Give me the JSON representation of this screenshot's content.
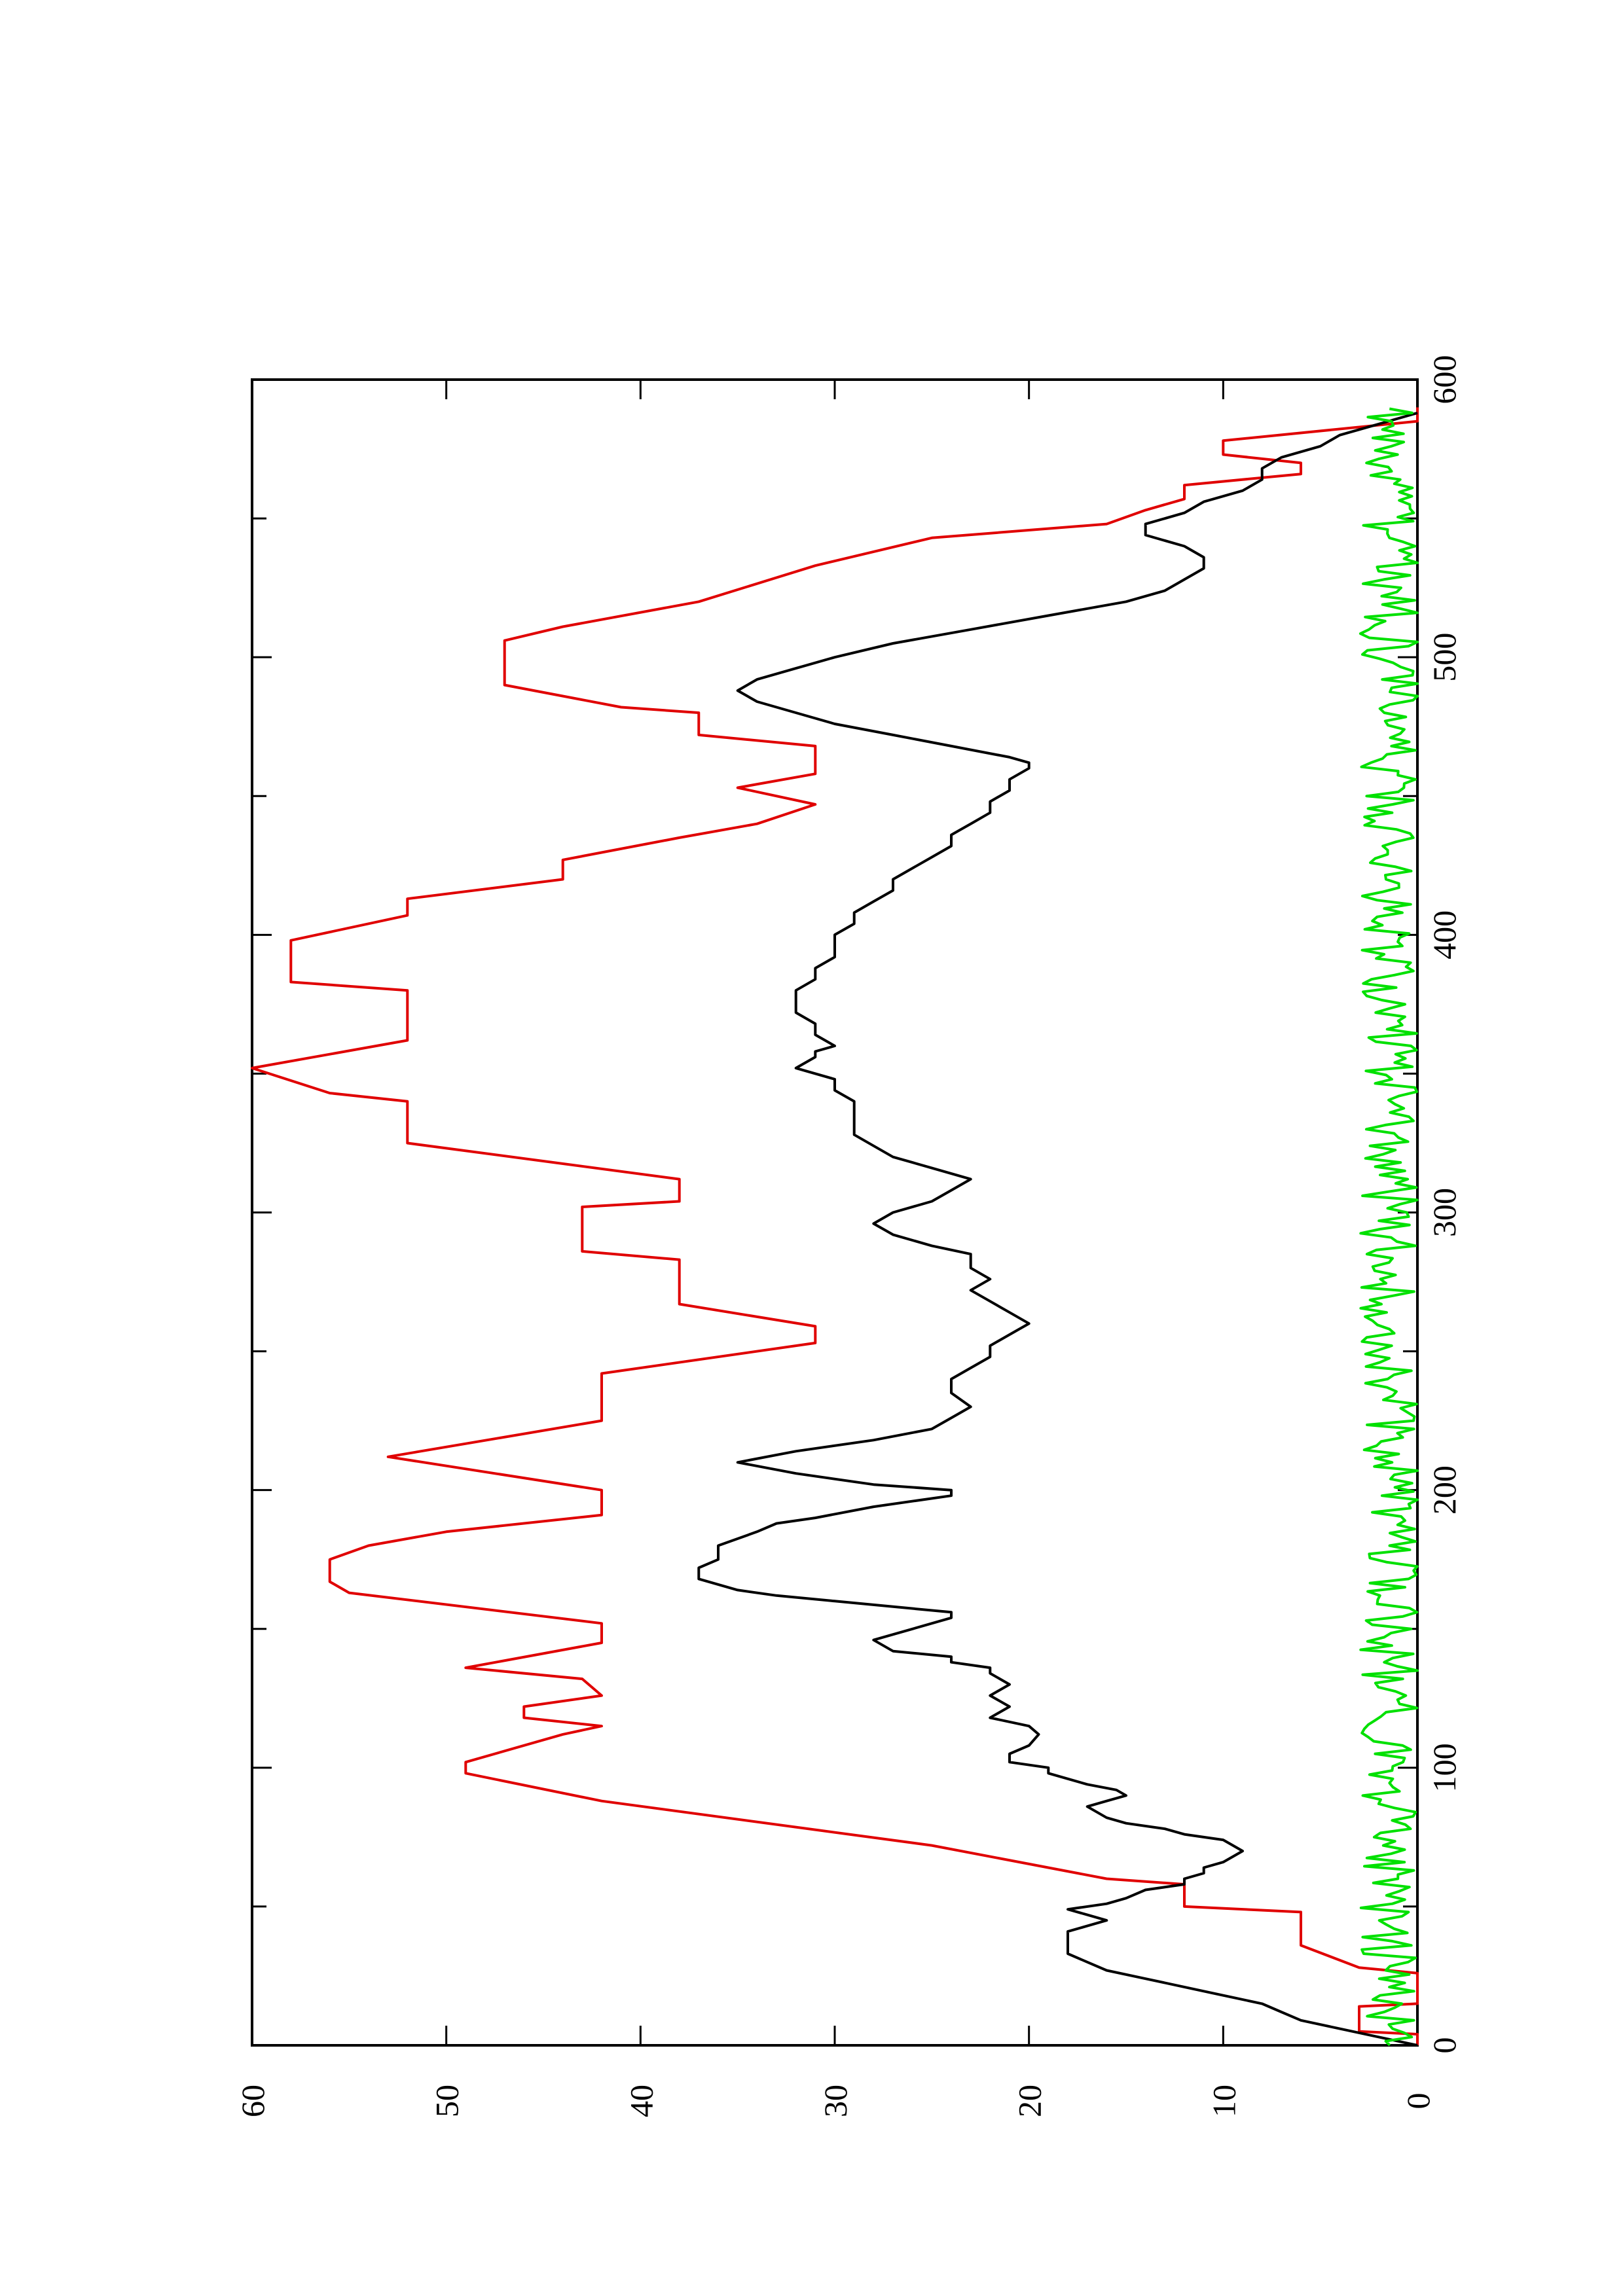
{
  "chart_data": {
    "type": "line",
    "orientation": "rotated-90-ccw",
    "title": "",
    "xlabel": "",
    "ylabel": "",
    "xlim": [
      0,
      600
    ],
    "ylim": [
      0,
      60
    ],
    "x_ticks_major": [
      0,
      100,
      200,
      300,
      400,
      500,
      600
    ],
    "x_ticks_minor": [
      50,
      150,
      250,
      350,
      450,
      550
    ],
    "y_ticks_major": [
      0,
      10,
      20,
      30,
      40,
      50,
      60
    ],
    "x_tick_labels": [
      "0",
      "100",
      "200",
      "300",
      "400",
      "500",
      "600"
    ],
    "y_tick_labels": [
      "0",
      "10",
      "20",
      "30",
      "40",
      "50",
      "60"
    ],
    "grid": false,
    "colors": {
      "red": "#e00000",
      "black": "#000000",
      "green": "#00e000"
    },
    "series": [
      {
        "color": "red",
        "step": true,
        "points": [
          [
            0,
            0
          ],
          [
            4,
            0
          ],
          [
            5,
            3
          ],
          [
            14,
            3
          ],
          [
            15,
            0
          ],
          [
            18,
            0
          ],
          [
            26,
            0
          ],
          [
            28,
            3
          ],
          [
            36,
            6
          ],
          [
            48,
            6
          ],
          [
            50,
            12
          ],
          [
            58,
            12
          ],
          [
            60,
            16
          ],
          [
            72,
            25
          ],
          [
            88,
            42
          ],
          [
            98,
            49
          ],
          [
            102,
            49
          ],
          [
            112,
            44
          ],
          [
            115,
            42
          ],
          [
            118,
            46
          ],
          [
            122,
            46
          ],
          [
            126,
            42
          ],
          [
            132,
            43
          ],
          [
            136,
            49
          ],
          [
            145,
            42
          ],
          [
            152,
            42
          ],
          [
            163,
            55
          ],
          [
            167,
            56
          ],
          [
            175,
            56
          ],
          [
            180,
            54
          ],
          [
            185,
            50
          ],
          [
            191,
            42
          ],
          [
            200,
            42
          ],
          [
            212,
            53
          ],
          [
            225,
            42
          ],
          [
            242,
            42
          ],
          [
            253,
            31
          ],
          [
            259,
            31
          ],
          [
            267,
            38
          ],
          [
            283,
            38
          ],
          [
            286,
            43
          ],
          [
            302,
            43
          ],
          [
            304,
            38
          ],
          [
            312,
            38
          ],
          [
            325,
            52
          ],
          [
            340,
            52
          ],
          [
            343,
            56
          ],
          [
            352,
            60
          ],
          [
            357,
            56
          ],
          [
            362,
            52
          ],
          [
            380,
            52
          ],
          [
            383,
            58
          ],
          [
            398,
            58
          ],
          [
            407,
            52
          ],
          [
            413,
            52
          ],
          [
            420,
            44
          ],
          [
            427,
            44
          ],
          [
            435,
            38
          ],
          [
            440,
            34
          ],
          [
            447,
            31
          ],
          [
            453,
            35
          ],
          [
            458,
            31
          ],
          [
            468,
            31
          ],
          [
            472,
            37
          ],
          [
            480,
            37
          ],
          [
            482,
            41
          ],
          [
            490,
            47
          ],
          [
            506,
            47
          ],
          [
            511,
            44
          ],
          [
            520,
            37
          ],
          [
            533,
            31
          ],
          [
            543,
            25
          ],
          [
            548,
            16
          ],
          [
            553,
            14
          ],
          [
            557,
            12
          ],
          [
            562,
            12
          ],
          [
            566,
            6
          ],
          [
            570,
            6
          ],
          [
            573,
            10
          ],
          [
            578,
            10
          ],
          [
            585,
            0
          ],
          [
            590,
            0
          ]
        ]
      },
      {
        "color": "black",
        "points": [
          [
            0,
            0
          ],
          [
            3,
            2
          ],
          [
            6,
            4
          ],
          [
            9,
            6
          ],
          [
            12,
            7
          ],
          [
            15,
            8
          ],
          [
            18,
            10
          ],
          [
            21,
            12
          ],
          [
            24,
            14
          ],
          [
            27,
            16
          ],
          [
            30,
            17
          ],
          [
            33,
            18
          ],
          [
            36,
            18
          ],
          [
            39,
            18
          ],
          [
            41,
            18
          ],
          [
            43,
            17
          ],
          [
            45,
            16
          ],
          [
            47,
            17
          ],
          [
            49,
            18
          ],
          [
            51,
            16
          ],
          [
            53,
            15
          ],
          [
            56,
            14
          ],
          [
            58,
            12
          ],
          [
            60,
            12
          ],
          [
            62,
            11
          ],
          [
            64,
            11
          ],
          [
            66,
            10
          ],
          [
            68,
            9.5
          ],
          [
            70,
            9
          ],
          [
            72,
            9.5
          ],
          [
            74,
            10
          ],
          [
            76,
            12
          ],
          [
            78,
            13
          ],
          [
            80,
            15
          ],
          [
            82,
            16
          ],
          [
            84,
            16.5
          ],
          [
            86,
            17
          ],
          [
            88,
            16
          ],
          [
            90,
            15
          ],
          [
            92,
            15.5
          ],
          [
            94,
            17
          ],
          [
            96,
            18
          ],
          [
            98,
            19
          ],
          [
            100,
            19
          ],
          [
            102,
            21
          ],
          [
            105,
            21
          ],
          [
            108,
            20
          ],
          [
            112,
            19.5
          ],
          [
            115,
            20
          ],
          [
            118,
            22
          ],
          [
            122,
            21
          ],
          [
            126,
            22
          ],
          [
            130,
            21
          ],
          [
            134,
            22
          ],
          [
            136,
            22
          ],
          [
            138,
            24
          ],
          [
            140,
            24
          ],
          [
            142,
            27
          ],
          [
            146,
            28
          ],
          [
            150,
            26
          ],
          [
            154,
            24
          ],
          [
            156,
            24
          ],
          [
            158,
            27
          ],
          [
            160,
            30
          ],
          [
            162,
            33
          ],
          [
            164,
            35
          ],
          [
            166,
            36
          ],
          [
            168,
            37
          ],
          [
            172,
            37
          ],
          [
            175,
            36
          ],
          [
            180,
            36
          ],
          [
            185,
            34
          ],
          [
            188,
            33
          ],
          [
            190,
            31
          ],
          [
            194,
            28
          ],
          [
            198,
            24
          ],
          [
            200,
            24
          ],
          [
            202,
            28
          ],
          [
            206,
            32
          ],
          [
            210,
            35
          ],
          [
            214,
            32
          ],
          [
            218,
            28
          ],
          [
            222,
            25
          ],
          [
            226,
            24
          ],
          [
            230,
            23
          ],
          [
            235,
            24
          ],
          [
            240,
            24
          ],
          [
            244,
            23
          ],
          [
            248,
            22
          ],
          [
            252,
            22
          ],
          [
            256,
            21
          ],
          [
            260,
            20
          ],
          [
            264,
            21
          ],
          [
            268,
            22
          ],
          [
            272,
            23
          ],
          [
            276,
            22
          ],
          [
            280,
            23
          ],
          [
            285,
            23
          ],
          [
            288,
            25
          ],
          [
            292,
            27
          ],
          [
            296,
            28
          ],
          [
            300,
            27
          ],
          [
            304,
            25
          ],
          [
            308,
            24
          ],
          [
            312,
            23
          ],
          [
            316,
            25
          ],
          [
            318,
            26
          ],
          [
            320,
            27
          ],
          [
            324,
            28
          ],
          [
            328,
            29
          ],
          [
            332,
            29
          ],
          [
            336,
            29
          ],
          [
            340,
            29
          ],
          [
            344,
            30
          ],
          [
            348,
            30
          ],
          [
            352,
            32
          ],
          [
            356,
            31
          ],
          [
            358,
            31
          ],
          [
            360,
            30
          ],
          [
            364,
            31
          ],
          [
            368,
            31
          ],
          [
            372,
            32
          ],
          [
            376,
            32
          ],
          [
            380,
            32
          ],
          [
            384,
            31
          ],
          [
            388,
            31
          ],
          [
            392,
            30
          ],
          [
            396,
            30
          ],
          [
            400,
            30
          ],
          [
            404,
            29
          ],
          [
            408,
            29
          ],
          [
            412,
            28
          ],
          [
            416,
            27
          ],
          [
            420,
            27
          ],
          [
            424,
            26
          ],
          [
            428,
            25
          ],
          [
            432,
            24
          ],
          [
            436,
            24
          ],
          [
            440,
            23
          ],
          [
            444,
            22
          ],
          [
            448,
            22
          ],
          [
            452,
            21
          ],
          [
            456,
            21
          ],
          [
            460,
            20
          ],
          [
            462,
            20
          ],
          [
            464,
            21
          ],
          [
            468,
            24
          ],
          [
            472,
            27
          ],
          [
            476,
            30
          ],
          [
            480,
            32
          ],
          [
            484,
            34
          ],
          [
            488,
            35
          ],
          [
            492,
            34
          ],
          [
            496,
            32
          ],
          [
            500,
            30
          ],
          [
            505,
            27
          ],
          [
            510,
            23
          ],
          [
            515,
            19
          ],
          [
            520,
            15
          ],
          [
            524,
            13
          ],
          [
            528,
            12
          ],
          [
            532,
            11
          ],
          [
            536,
            11
          ],
          [
            540,
            12
          ],
          [
            544,
            14
          ],
          [
            548,
            14
          ],
          [
            552,
            12
          ],
          [
            556,
            11
          ],
          [
            560,
            9
          ],
          [
            564,
            8
          ],
          [
            568,
            8
          ],
          [
            572,
            7
          ],
          [
            576,
            5
          ],
          [
            580,
            4
          ],
          [
            584,
            2
          ],
          [
            588,
            0
          ]
        ]
      },
      {
        "color": "green",
        "noisy": true,
        "amplitude": 3,
        "baseline": 1,
        "x_range": [
          0,
          590
        ]
      }
    ]
  }
}
